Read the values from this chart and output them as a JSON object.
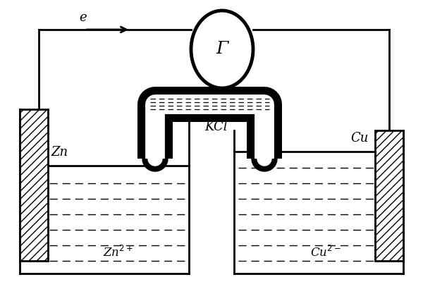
{
  "bg_color": "#ffffff",
  "line_color": "#000000",
  "lw": 2.0,
  "thick_lw": 3.5,
  "labels": {
    "e_label": "e",
    "gamma_label": "Γ",
    "zn_label": "Zn",
    "cu_label": "Cu",
    "kcl_label": "KCl",
    "zn_ion": "Zn$^{2+}$",
    "cu_ion": "Cu$^{2-}$"
  },
  "figsize": [
    6.0,
    4.0
  ],
  "dpi": 100
}
